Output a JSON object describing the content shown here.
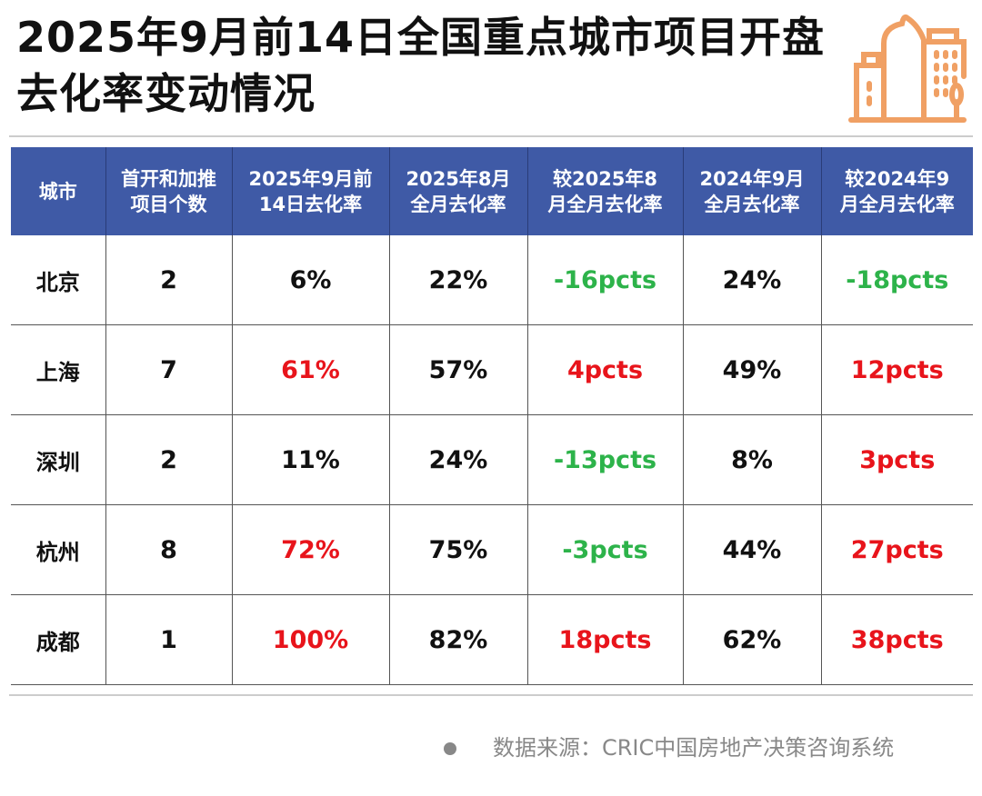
{
  "title": "2025年9月前14日全国重点城市项目开盘去化率变动情况",
  "colors": {
    "header": "#3f5aa6",
    "up": "#e8141b",
    "down": "#2db34a",
    "icon": "#f0a064"
  },
  "chart_data": {
    "type": "table",
    "columns": [
      "城市",
      "首开和加推项目个数",
      "2025年9月前14日去化率",
      "2025年8月全月去化率",
      "较2025年8月全月去化率",
      "2024年9月全月去化率",
      "较2024年9月全月去化率"
    ],
    "rows": [
      {
        "cells": [
          "北京",
          "2",
          "6%",
          "22%",
          "-16pcts",
          "24%",
          "-18pcts"
        ],
        "colors": [
          "",
          "",
          "",
          "",
          "green",
          "",
          "green"
        ]
      },
      {
        "cells": [
          "上海",
          "7",
          "61%",
          "57%",
          "4pcts",
          "49%",
          "12pcts"
        ],
        "colors": [
          "",
          "",
          "red",
          "",
          "red",
          "",
          "red"
        ]
      },
      {
        "cells": [
          "深圳",
          "2",
          "11%",
          "24%",
          "-13pcts",
          "8%",
          "3pcts"
        ],
        "colors": [
          "",
          "",
          "",
          "",
          "green",
          "",
          "red"
        ]
      },
      {
        "cells": [
          "杭州",
          "8",
          "72%",
          "75%",
          "-3pcts",
          "44%",
          "27pcts"
        ],
        "colors": [
          "",
          "",
          "red",
          "",
          "green",
          "",
          "red"
        ]
      },
      {
        "cells": [
          "成都",
          "1",
          "100%",
          "82%",
          "18pcts",
          "62%",
          "38pcts"
        ],
        "colors": [
          "",
          "",
          "red",
          "",
          "red",
          "",
          "red"
        ]
      }
    ]
  },
  "header_lines": [
    [
      "城市"
    ],
    [
      "首开和加推",
      "项目个数"
    ],
    [
      "2025年9月前",
      "14日去化率"
    ],
    [
      "2025年8月",
      "全月去化率"
    ],
    [
      "较2025年8",
      "月全月去化率"
    ],
    [
      "2024年9月",
      "全月去化率"
    ],
    [
      "较2024年9",
      "月全月去化率"
    ]
  ],
  "source": "数据来源：CRIC中国房地产决策咨询系统"
}
